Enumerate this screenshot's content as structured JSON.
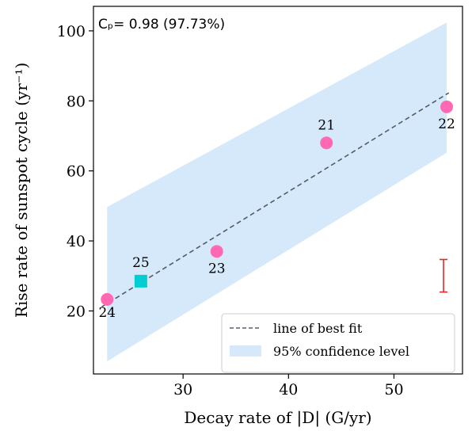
{
  "chart_data": {
    "type": "scatter",
    "title": "",
    "xlabel": "Decay rate of |D| (G/yr)",
    "ylabel": "Rise rate of sunspot cycle (yr⁻¹)",
    "xlim": [
      21.5,
      56.5
    ],
    "ylim": [
      2,
      107
    ],
    "xticks": [
      30,
      40,
      50
    ],
    "yticks": [
      20,
      40,
      60,
      80,
      100
    ],
    "annotation": "Cₚ= 0.98 (97.73%)",
    "grid": false,
    "legend_position": "bottom-right",
    "points": [
      {
        "cycle": "24",
        "x": 22.8,
        "y": 23.3,
        "marker": "circle",
        "color": "#ff69b4"
      },
      {
        "cycle": "25",
        "x": 26.0,
        "y": 28.5,
        "marker": "square",
        "color": "#00ced1"
      },
      {
        "cycle": "23",
        "x": 33.2,
        "y": 37.0,
        "marker": "circle",
        "color": "#ff69b4"
      },
      {
        "cycle": "21",
        "x": 43.6,
        "y": 68.0,
        "marker": "circle",
        "color": "#ff69b4"
      },
      {
        "cycle": "22",
        "x": 55.0,
        "y": 78.3,
        "marker": "circle",
        "color": "#ff69b4"
      }
    ],
    "best_fit": {
      "name": "line of best fit",
      "x": [
        22.3,
        55.2
      ],
      "y": [
        21.2,
        82.3
      ],
      "color": "#555a66",
      "style": "dashed"
    },
    "confidence_band": {
      "name": "95% confidence level",
      "color": "#d6e9fb",
      "x": [
        22.8,
        55.0
      ],
      "upper": [
        49.7,
        102.4
      ],
      "lower": [
        5.6,
        65.2
      ]
    },
    "error_bar": {
      "x": 54.7,
      "y_low": 25.4,
      "y_high": 34.7,
      "color": "#e8262a"
    }
  }
}
